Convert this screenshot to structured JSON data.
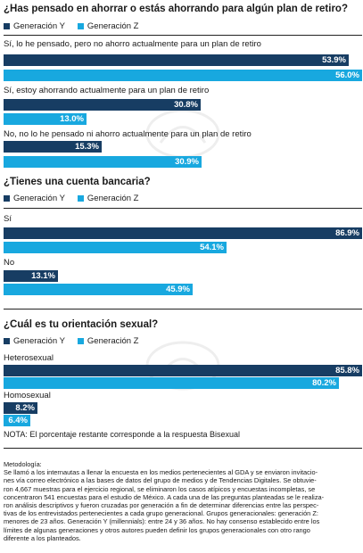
{
  "colors": {
    "gen_y": "#173d63",
    "gen_z": "#18a8df"
  },
  "legend": {
    "gen_y": "Generación Y",
    "gen_z": "Generación Z"
  },
  "chart_data": [
    {
      "type": "bar",
      "title": "¿Has pensado en ahorrar o estás ahorrando para algún plan de retiro?",
      "categories": [
        "Sí, lo he pensado, pero no ahorro actualmente para un plan de retiro",
        "Sí, estoy ahorrando actualmente para un plan de retiro",
        "No, no lo he pensado ni ahorro actualmente para un plan de retiro"
      ],
      "series": [
        {
          "name": "Generación Y",
          "values": [
            53.9,
            30.8,
            15.3
          ],
          "labels": [
            "53.9%",
            "30.8%",
            "15.3%"
          ]
        },
        {
          "name": "Generación Z",
          "values": [
            56.0,
            13.0,
            30.9
          ],
          "labels": [
            "56.0%",
            "13.0%",
            "30.9%"
          ]
        }
      ],
      "xlim": [
        0,
        56.0
      ]
    },
    {
      "type": "bar",
      "title": "¿Tienes una cuenta bancaria?",
      "categories": [
        "Sí",
        "No"
      ],
      "series": [
        {
          "name": "Generación Y",
          "values": [
            86.9,
            13.1
          ],
          "labels": [
            "86.9%",
            "13.1%"
          ]
        },
        {
          "name": "Generación Z",
          "values": [
            54.1,
            45.9
          ],
          "labels": [
            "54.1%",
            "45.9%"
          ]
        }
      ],
      "xlim": [
        0,
        86.9
      ]
    },
    {
      "type": "bar",
      "title": "¿Cuál es tu orientación sexual?",
      "categories": [
        "Heterosexual",
        "Homosexual"
      ],
      "series": [
        {
          "name": "Generación Y",
          "values": [
            85.8,
            8.2
          ],
          "labels": [
            "85.8%",
            "8.2%"
          ]
        },
        {
          "name": "Generación Z",
          "values": [
            80.2,
            6.4
          ],
          "labels": [
            "80.2%",
            "6.4%"
          ]
        }
      ],
      "xlim": [
        0,
        85.8
      ],
      "note": "NOTA: El porcentaje restante corresponde a la respuesta Bisexual"
    }
  ],
  "methodology": {
    "title": "Metodología:",
    "lines": [
      "Se llamó a los internautas a llenar la encuesta en los medios pertenecientes al GDA y se enviaron invitacio-",
      "nes vía correo electrónico a las bases de datos del grupo de medios y de Tendencias Digitales. Se obtuvie-",
      "ron 4,667 muestras para el ejercicio regional, se eliminaron los casos atípicos y encuestas incompletas, se",
      "concentraron 541 encuestas para el estudio de México. A cada una de las preguntas planteadas se le realiza-",
      "ron análisis descriptivos y fueron cruzadas por generación a fin de determinar diferencias entre las perspec-",
      "tivas de los entrevistados pertenecientes a cada grupo generacional. Grupos generacionales: generación Z:",
      "menores de 23 años. Generación Y (millennials): entre 24 y 36 años. No hay consenso establecido entre los",
      "límites de algunas generaciones y otros autores pueden definir los grupos generacionales con otro rango",
      "diferente a los planteados."
    ]
  }
}
